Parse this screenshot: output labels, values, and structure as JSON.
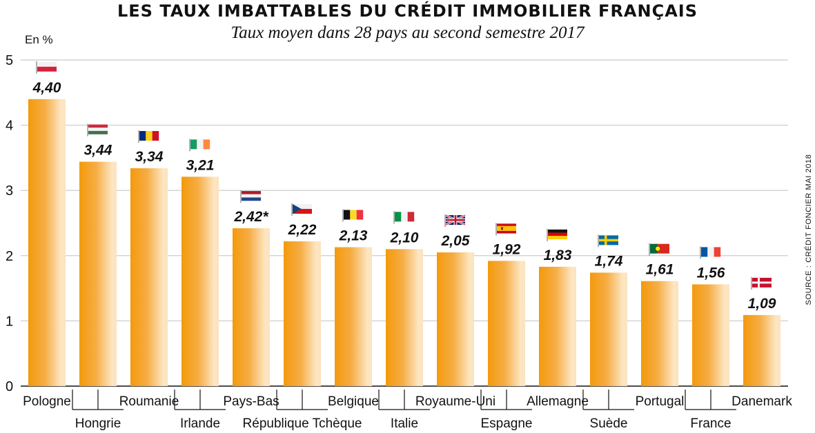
{
  "header": {
    "title": "LES TAUX IMBATTABLES DU CRÉDIT IMMOBILIER FRANÇAIS",
    "subtitle": "Taux moyen dans 28 pays au second semestre 2017",
    "unit": "En %",
    "source": "SOURCE : CRÉDIT FONCIER MAI 2018"
  },
  "colors": {
    "bar_main": "#f39a0c",
    "bar_light": "#fde6c2",
    "gridline": "#d4d4d4",
    "axis": "#111111"
  },
  "chart_data": {
    "type": "bar",
    "title": "LES TAUX IMBATTABLES DU CRÉDIT IMMOBILIER FRANÇAIS",
    "subtitle": "Taux moyen dans 28 pays au second semestre 2017",
    "ylabel": "En %",
    "ylim": [
      0,
      5
    ],
    "yticks": [
      0,
      1,
      2,
      3,
      4,
      5
    ],
    "grid": true,
    "categories": [
      "Pologne",
      "Hongrie",
      "Roumanie",
      "Irlande",
      "Pays-Bas",
      "République Tchèque",
      "Belgique",
      "Italie",
      "Royaume-Uni",
      "Espagne",
      "Allemagne",
      "Suède",
      "Portugal",
      "France",
      "Danemark"
    ],
    "values": [
      4.4,
      3.44,
      3.34,
      3.21,
      2.42,
      2.22,
      2.13,
      2.1,
      2.05,
      1.92,
      1.83,
      1.74,
      1.61,
      1.56,
      1.09
    ],
    "value_labels": [
      "4,40",
      "3,44",
      "3,34",
      "3,21",
      "2,42*",
      "2,22",
      "2,13",
      "2,10",
      "2,05",
      "1,92",
      "1,83",
      "1,74",
      "1,61",
      "1,56",
      "1,09"
    ],
    "flags": [
      "poland-flag-icon",
      "hungary-flag-icon",
      "romania-flag-icon",
      "ireland-flag-icon",
      "netherlands-flag-icon",
      "czech-flag-icon",
      "belgium-flag-icon",
      "italy-flag-icon",
      "uk-flag-icon",
      "spain-flag-icon",
      "germany-flag-icon",
      "sweden-flag-icon",
      "portugal-flag-icon",
      "france-flag-icon",
      "denmark-flag-icon"
    ]
  }
}
